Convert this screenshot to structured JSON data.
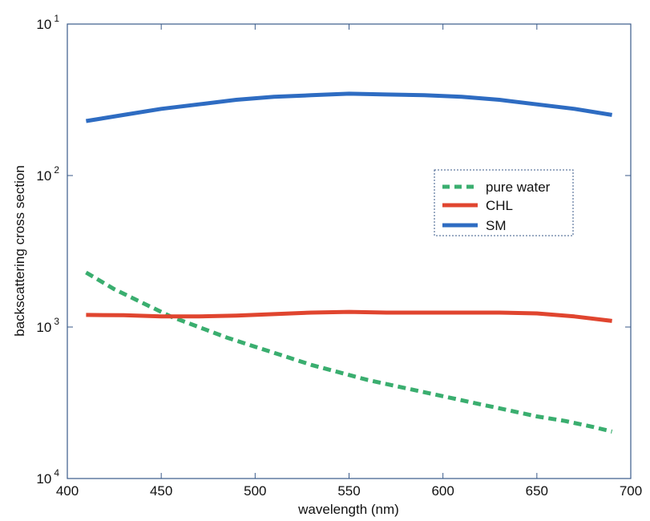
{
  "chart_data": {
    "type": "line",
    "title": "",
    "xlabel": "wavelength (nm)",
    "ylabel": "backscattering cross section",
    "xlim": [
      400,
      700
    ],
    "ylim_decades": [
      1,
      4
    ],
    "y_scale": "log",
    "x_ticks": [
      "400",
      "450",
      "500",
      "550",
      "600",
      "650",
      "700"
    ],
    "y_ticks": [
      {
        "base": "10",
        "exp": "1",
        "decade": 1
      },
      {
        "base": "10",
        "exp": "2",
        "decade": 2
      },
      {
        "base": "10",
        "exp": "3",
        "decade": 3
      },
      {
        "base": "10",
        "exp": "4",
        "decade": 4
      }
    ],
    "grid": false,
    "legend_position": "right",
    "series": [
      {
        "name": "pure water",
        "color": "#3aae6f",
        "style": "dashed",
        "x": [
          410,
          425,
          440,
          455,
          470,
          485,
          500,
          515,
          530,
          545,
          560,
          575,
          590,
          605,
          620,
          635,
          650,
          665,
          680,
          690
        ],
        "y": [
          2.64,
          2.75,
          2.84,
          2.93,
          3.0,
          3.07,
          3.13,
          3.19,
          3.25,
          3.3,
          3.35,
          3.39,
          3.43,
          3.47,
          3.51,
          3.55,
          3.59,
          3.62,
          3.66,
          3.69
        ]
      },
      {
        "name": "CHL",
        "color": "#e0452f",
        "style": "solid",
        "x": [
          410,
          430,
          450,
          470,
          490,
          510,
          530,
          550,
          570,
          590,
          610,
          630,
          650,
          670,
          690
        ],
        "y": [
          2.92,
          2.922,
          2.93,
          2.93,
          2.925,
          2.915,
          2.905,
          2.9,
          2.905,
          2.905,
          2.905,
          2.905,
          2.91,
          2.93,
          2.96
        ]
      },
      {
        "name": "SM",
        "color": "#2e6cc2",
        "style": "solid",
        "x": [
          410,
          430,
          450,
          470,
          490,
          510,
          530,
          550,
          570,
          590,
          610,
          630,
          650,
          670,
          690
        ],
        "y": [
          1.64,
          1.6,
          1.56,
          1.53,
          1.5,
          1.48,
          1.47,
          1.46,
          1.465,
          1.47,
          1.48,
          1.5,
          1.53,
          1.56,
          1.6
        ]
      }
    ]
  }
}
